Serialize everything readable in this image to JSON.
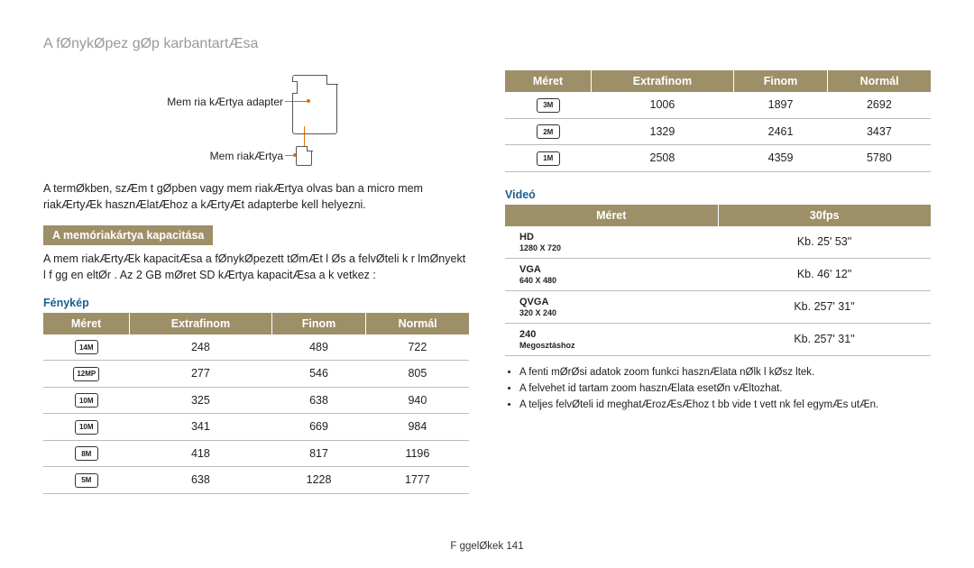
{
  "page": {
    "title": "A fØnykØpez gØp karbantartÆsa",
    "footer_label": "F ggelØkek",
    "footer_page": "141"
  },
  "diagram": {
    "label_adapter": "Mem ria kÆrtya adapter",
    "label_card": "Mem riakÆrtya"
  },
  "text": {
    "para1": "A termØkben, szÆm t gØpben vagy mem riakÆrtya olvas ban a micro mem riakÆrtyÆk hasznÆlatÆhoz a kÆrtyÆt adapterbe kell helyezni."
  },
  "capacity": {
    "title": "A memóriakártya kapacitása",
    "desc": "A mem riakÆrtyÆk kapacitÆsa a fØnykØpezett tØmÆt l Øs a felvØteli k r lmØnyekt l f gg en eltØr . Az 2 GB mØret  SD kÆrtya kapacitÆsa a k vetkez :"
  },
  "photo": {
    "heading": "Fénykép",
    "headers": [
      "Méret",
      "Extrafinom",
      "Finom",
      "Normál"
    ],
    "rows": [
      {
        "size": "14M",
        "v": [
          248,
          489,
          722
        ]
      },
      {
        "size": "12MP",
        "v": [
          277,
          546,
          805
        ]
      },
      {
        "size": "10M",
        "v": [
          325,
          638,
          940
        ]
      },
      {
        "size": "10M",
        "v": [
          341,
          669,
          984
        ]
      },
      {
        "size": "8M",
        "v": [
          418,
          817,
          1196
        ]
      },
      {
        "size": "5M",
        "v": [
          638,
          1228,
          1777
        ]
      }
    ],
    "rows2": [
      {
        "size": "3M",
        "v": [
          1006,
          1897,
          2692
        ]
      },
      {
        "size": "2M",
        "v": [
          1329,
          2461,
          3437
        ]
      },
      {
        "size": "1M",
        "v": [
          2508,
          4359,
          5780
        ]
      }
    ]
  },
  "video": {
    "heading": "Videó",
    "headers": [
      "Méret",
      "30fps"
    ],
    "rows": [
      {
        "label": "HD",
        "sub": "1280 X 720",
        "v": "Kb. 25' 53\""
      },
      {
        "label": "VGA",
        "sub": "640 X 480",
        "v": "Kb. 46' 12\""
      },
      {
        "label": "QVGA",
        "sub": "320 X 240",
        "v": "Kb. 257' 31\""
      },
      {
        "label": "240",
        "sub": "Megosztáshoz",
        "v": "Kb. 257' 31\""
      }
    ],
    "notes": [
      "A fenti mØrØsi adatok zoom funkci  hasznÆlata nØlk l kØsz ltek.",
      "A felvehet  id tartam zoom hasznÆlata esetØn vÆltozhat.",
      "A teljes felvØteli id  meghatÆrozÆsÆhoz t bb vide t vett nk fel egymÆs utÆn."
    ]
  },
  "colors": {
    "header_bg": "#9d8f68",
    "header_fg": "#ffffff",
    "border": "#bbbbbb",
    "accent": "#e07000",
    "title": "#999999",
    "blue": "#1a5f8f"
  }
}
